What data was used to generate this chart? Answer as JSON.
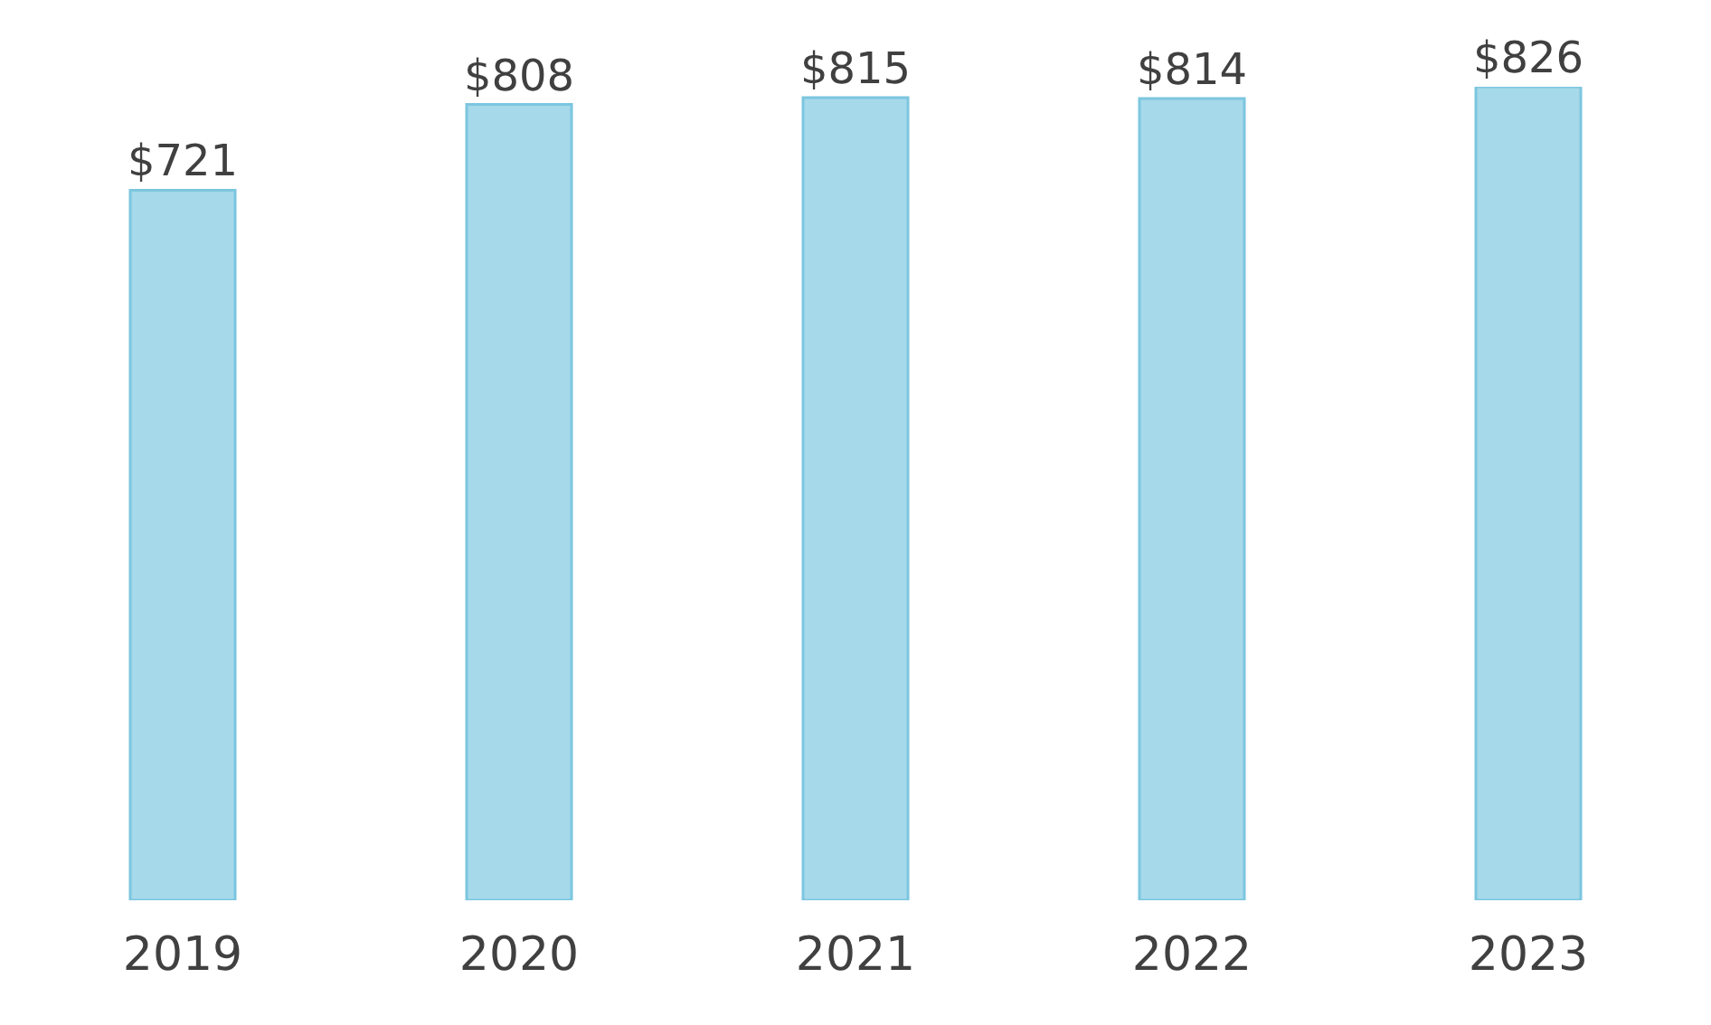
{
  "chart_data": {
    "type": "bar",
    "categories": [
      "2019",
      "2020",
      "2021",
      "2022",
      "2023"
    ],
    "values": [
      721,
      808,
      815,
      814,
      826
    ],
    "value_labels": [
      "$721",
      "$808",
      "$815",
      "$814",
      "$826"
    ],
    "color": "#a6d9ea",
    "tick_labels": "x",
    "grid": false,
    "legend": false
  }
}
